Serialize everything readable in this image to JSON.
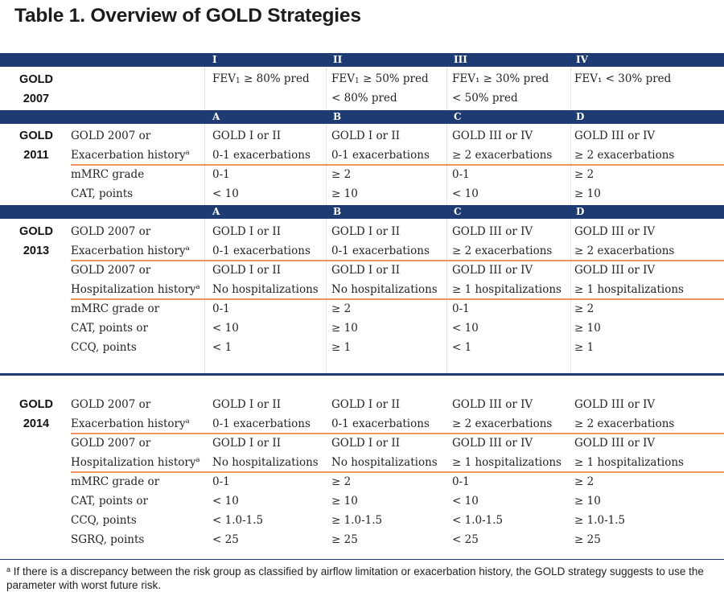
{
  "title": "Table 1. Overview of GOLD Strategies",
  "headers_2007": [
    "I",
    "II",
    "III",
    "IV"
  ],
  "headers_group": [
    "A",
    "B",
    "C",
    "D"
  ],
  "gold2007": {
    "label1": "GOLD",
    "label2": "2007",
    "cells": [
      {
        "line1_pre": "FEV",
        "line1_sub": "1",
        "line1_post": " ≥ 80% pred",
        "line2": ""
      },
      {
        "line1_pre": "FEV",
        "line1_sub": "1",
        "line1_post": " ≥ 50% pred",
        "line2": "< 80% pred"
      },
      {
        "line1_pre": "FEV₁ ≥ 30% pred",
        "line1_sub": "",
        "line1_post": "",
        "line2": "< 50% pred"
      },
      {
        "line1_pre": "FEV₁ < 30% pred",
        "line1_sub": "",
        "line1_post": "",
        "line2": ""
      }
    ]
  },
  "gold2011": {
    "label1": "GOLD",
    "label2": "2011",
    "rows": [
      {
        "label": "GOLD 2007 or",
        "sup": "",
        "cells": [
          "GOLD I or II",
          "GOLD I or II",
          "GOLD III or IV",
          "GOLD III or IV"
        ]
      },
      {
        "label": "Exacerbation history",
        "sup": "a",
        "cells": [
          "0-1 exacerbations",
          "0-1 exacerbations",
          "≥ 2  exacerbations",
          "≥ 2 exacerbations"
        ]
      },
      {
        "label": "mMRC  grade",
        "sup": "",
        "cells": [
          "0-1",
          "≥ 2",
          "0-1",
          "≥ 2"
        ]
      },
      {
        "label": "CAT, points",
        "sup": "",
        "cells": [
          "< 10",
          "≥ 10",
          "< 10",
          "≥ 10"
        ]
      }
    ]
  },
  "gold2013": {
    "label1": "GOLD",
    "label2": "2013",
    "rows": [
      {
        "label": "GOLD 2007 or",
        "sup": "",
        "cells": [
          "GOLD I or II",
          "GOLD I or II",
          "GOLD III or IV",
          "GOLD III or IV"
        ]
      },
      {
        "label": "Exacerbation history",
        "sup": "a",
        "cells": [
          "0-1 exacerbations",
          "0-1 exacerbations",
          "≥ 2  exacerbations",
          "≥ 2 exacerbations"
        ]
      },
      {
        "label": "GOLD 2007 or",
        "sup": "",
        "cells": [
          "GOLD I or II",
          "GOLD I or II",
          "GOLD III or IV",
          "GOLD III or IV"
        ]
      },
      {
        "label": "Hospitalization history",
        "sup": "a",
        "cells": [
          "No hospitalizations",
          "No hospitalizations",
          "≥ 1 hospitalizations",
          "≥ 1 hospitalizations"
        ]
      },
      {
        "label": "mMRC grade or",
        "sup": "",
        "cells": [
          "0-1",
          "≥ 2",
          "0-1",
          "≥ 2"
        ]
      },
      {
        "label": "CAT, points or",
        "sup": "",
        "cells": [
          "< 10",
          "≥ 10",
          "< 10",
          "≥ 10"
        ]
      },
      {
        "label": "CCQ, points",
        "sup": "",
        "cells": [
          "< 1",
          "≥ 1",
          "< 1",
          "≥ 1"
        ]
      }
    ]
  },
  "gold2014": {
    "label1": "GOLD",
    "label2": "2014",
    "rows": [
      {
        "label": "GOLD 2007 or",
        "sup": "",
        "cells": [
          "GOLD I or II",
          "GOLD I or II",
          "GOLD III or IV",
          "GOLD III or IV"
        ]
      },
      {
        "label": "Exacerbation history",
        "sup": "a",
        "cells": [
          "0-1 exacerbations",
          "0-1 exacerbations",
          "≥ 2  exacerbations",
          "≥ 2 exacerbations"
        ]
      },
      {
        "label": "GOLD 2007 or",
        "sup": "",
        "cells": [
          "GOLD I or II",
          "GOLD I or II",
          "GOLD III or IV",
          "GOLD III or IV"
        ]
      },
      {
        "label": "Hospitalization history",
        "sup": "a",
        "cells": [
          "No hospitalizations",
          "No hospitalizations",
          "≥ 1 hospitalizations",
          "≥ 1 hospitalizations"
        ]
      },
      {
        "label": "mMRC grade or",
        "sup": "",
        "cells": [
          "0-1",
          "≥ 2",
          "0-1",
          "≥ 2"
        ]
      },
      {
        "label": "CAT, points or",
        "sup": "",
        "cells": [
          "< 10",
          "≥ 10",
          "< 10",
          "≥ 10"
        ]
      },
      {
        "label": "CCQ, points",
        "sup": "",
        "cells": [
          "< 1.0-1.5",
          "≥ 1.0-1.5",
          "< 1.0-1.5",
          "≥ 1.0-1.5"
        ]
      },
      {
        "label": "SGRQ, points",
        "sup": "",
        "cells": [
          "< 25",
          "≥ 25",
          "< 25",
          "≥ 25"
        ]
      }
    ]
  },
  "footnote": {
    "marker": "a",
    "text": " If there is a discrepancy between the risk group as classified by airflow limitation or exacerbation  history, the GOLD strategy suggests to use the parameter with worst future risk."
  }
}
